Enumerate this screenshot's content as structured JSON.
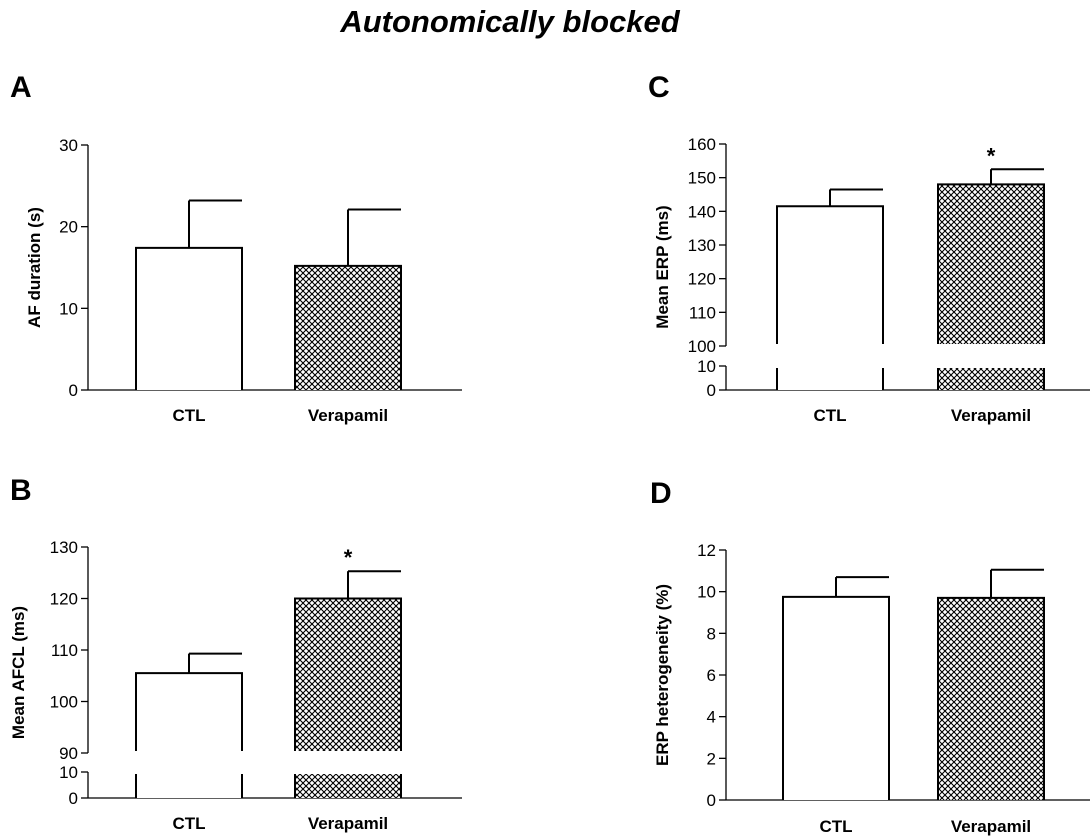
{
  "figure": {
    "title": "Autonomically blocked"
  },
  "chart_data": [
    {
      "type": "bar",
      "panel_label": "A",
      "ylabel": "AF duration (s)",
      "categories": [
        "CTL",
        "Verapamil"
      ],
      "values": [
        17.4,
        15.2
      ],
      "errors": [
        5.8,
        6.9
      ],
      "significance": [
        "",
        ""
      ],
      "ylim": [
        0,
        30
      ],
      "yticks": [
        "0",
        "10",
        "20",
        "30"
      ],
      "axis_break": false,
      "fills": [
        "plain",
        "crosshatch"
      ]
    },
    {
      "type": "bar",
      "panel_label": "B",
      "ylabel": "Mean AFCL (ms)",
      "categories": [
        "CTL",
        "Verapamil"
      ],
      "values": [
        105.5,
        120.0
      ],
      "errors": [
        3.8,
        5.3
      ],
      "significance": [
        "",
        "*"
      ],
      "ylim": [
        0,
        130
      ],
      "yticks": [
        "0",
        "10",
        "90",
        "100",
        "110",
        "120",
        "130"
      ],
      "axis_break": true,
      "fills": [
        "plain",
        "crosshatch"
      ]
    },
    {
      "type": "bar",
      "panel_label": "C",
      "ylabel": "Mean ERP (ms)",
      "categories": [
        "CTL",
        "Verapamil"
      ],
      "values": [
        141.5,
        148.0
      ],
      "errors": [
        5.0,
        4.5
      ],
      "significance": [
        "",
        "*"
      ],
      "ylim": [
        0,
        160
      ],
      "yticks": [
        "0",
        "10",
        "100",
        "110",
        "120",
        "130",
        "140",
        "150",
        "160"
      ],
      "axis_break": true,
      "fills": [
        "plain",
        "crosshatch"
      ]
    },
    {
      "type": "bar",
      "panel_label": "D",
      "ylabel": "ERP heterogeneity (%)",
      "categories": [
        "CTL",
        "Verapamil"
      ],
      "values": [
        9.75,
        9.7
      ],
      "errors": [
        0.95,
        1.35
      ],
      "significance": [
        "",
        ""
      ],
      "ylim": [
        0,
        12
      ],
      "yticks": [
        "0",
        "2",
        "4",
        "6",
        "8",
        "10",
        "12"
      ],
      "axis_break": false,
      "fills": [
        "plain",
        "crosshatch"
      ]
    }
  ]
}
